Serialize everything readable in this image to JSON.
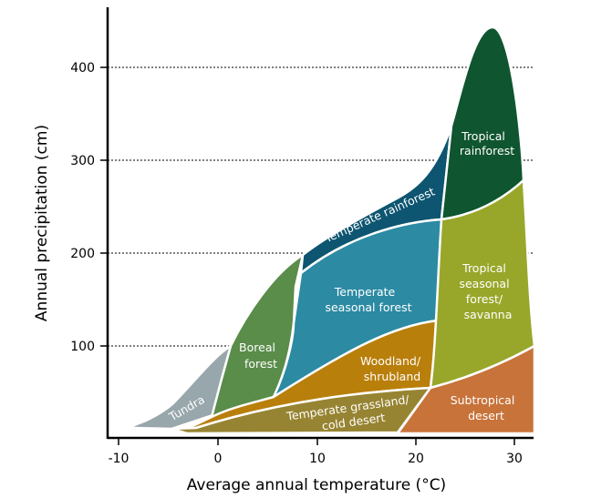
{
  "axes": {
    "x_title": "Average annual temperature (°C)",
    "y_title": "Annual precipitation (cm)",
    "x_ticks": [
      "-10",
      "0",
      "10",
      "20",
      "30"
    ],
    "y_ticks": [
      "100",
      "200",
      "300",
      "400"
    ]
  },
  "biomes": {
    "tundra": {
      "label": "Tundra",
      "color": "#98a7ab"
    },
    "boreal": {
      "label_lines": [
        "Boreal",
        "forest"
      ],
      "color": "#5a8c4a"
    },
    "temperate_rainforest": {
      "label": "Temperate rainforest",
      "color": "#0d5570"
    },
    "temperate_seasonal": {
      "label_lines": [
        "Temperate",
        "seasonal forest"
      ],
      "color": "#2c8aa3"
    },
    "woodland": {
      "label_lines": [
        "Woodland/",
        "shrubland"
      ],
      "color": "#b97f0b"
    },
    "grassland": {
      "label_lines": [
        "Temperate grassland/",
        "cold desert"
      ],
      "color": "#978432"
    },
    "tropical_rainforest": {
      "label_lines": [
        "Tropical",
        "rainforest"
      ],
      "color": "#0f5530"
    },
    "tropical_seasonal": {
      "label_lines": [
        "Tropical",
        "seasonal",
        "forest/",
        "savanna"
      ],
      "color": "#98a72a"
    },
    "subtropical_desert": {
      "label_lines": [
        "Subtropical",
        "desert"
      ],
      "color": "#c8733a"
    }
  }
}
